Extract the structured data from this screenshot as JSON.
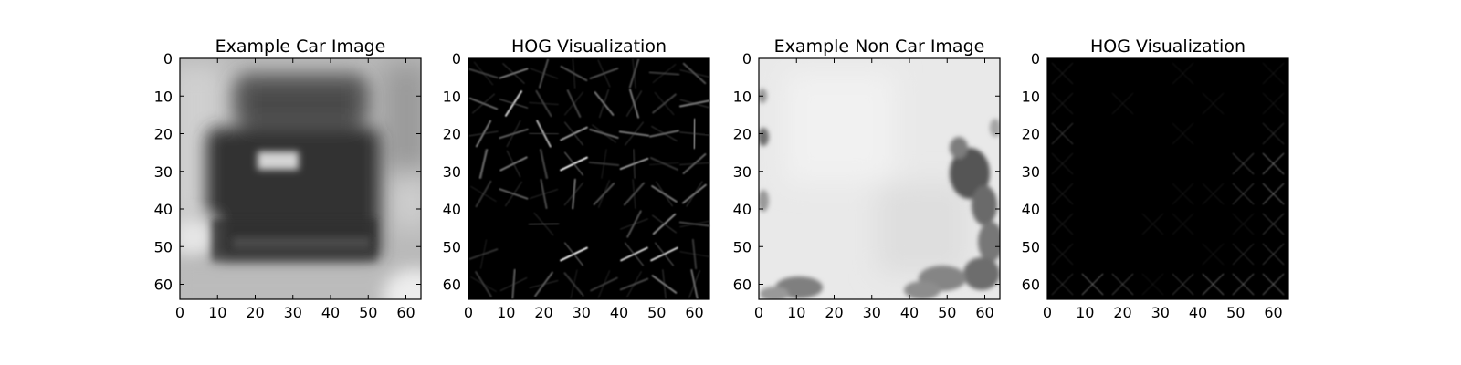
{
  "chart_data": [
    {
      "type": "heatmap",
      "title": "Example Car Image",
      "content": "grayscale photo of a car rear",
      "xlim": [
        0,
        64
      ],
      "ylim": [
        64,
        0
      ],
      "xticks": [
        0,
        10,
        20,
        30,
        40,
        50,
        60
      ],
      "yticks": [
        0,
        10,
        20,
        30,
        40,
        50,
        60
      ],
      "colormap": "gray"
    },
    {
      "type": "heatmap",
      "title": "HOG Visualization",
      "content": "HOG gradient-orientation glyphs of the car image",
      "xlim": [
        0,
        64
      ],
      "ylim": [
        64,
        0
      ],
      "xticks": [
        0,
        10,
        20,
        30,
        40,
        50,
        60
      ],
      "yticks": [
        0,
        10,
        20,
        30,
        40,
        50,
        60
      ],
      "colormap": "gray"
    },
    {
      "type": "heatmap",
      "title": "Example Non Car Image",
      "content": "grayscale photo of sky with dark foliage at edges",
      "xlim": [
        0,
        64
      ],
      "ylim": [
        64,
        0
      ],
      "xticks": [
        0,
        10,
        20,
        30,
        40,
        50,
        60
      ],
      "yticks": [
        0,
        10,
        20,
        30,
        40,
        50,
        60
      ],
      "colormap": "gray"
    },
    {
      "type": "heatmap",
      "title": "HOG Visualization",
      "content": "HOG gradient-orientation glyphs of the non car image",
      "xlim": [
        0,
        64
      ],
      "ylim": [
        64,
        0
      ],
      "xticks": [
        0,
        10,
        20,
        30,
        40,
        50,
        60
      ],
      "yticks": [
        0,
        10,
        20,
        30,
        40,
        50,
        60
      ],
      "colormap": "gray"
    }
  ]
}
